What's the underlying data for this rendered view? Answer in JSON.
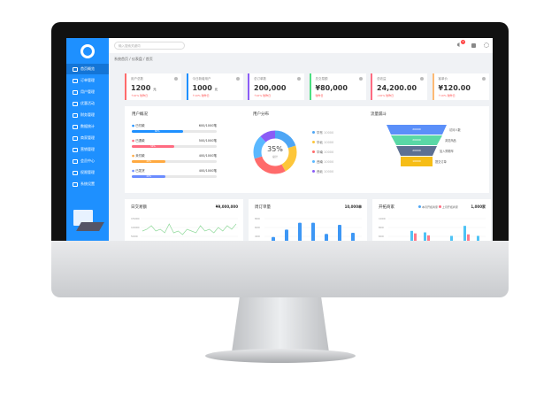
{
  "header": {
    "search_placeholder": "输入搜索关键词",
    "notif_count": "3"
  },
  "breadcrumb": "系统首页 / 仪表盘 / 首页",
  "sidebar": {
    "items": [
      {
        "label": "首页概览",
        "active": true
      },
      {
        "label": "订单管理"
      },
      {
        "label": "用户管理"
      },
      {
        "label": "优惠活动"
      },
      {
        "label": "财务管理"
      },
      {
        "label": "数据统计"
      },
      {
        "label": "商家管理"
      },
      {
        "label": "营销管理"
      },
      {
        "label": "会员中心"
      },
      {
        "label": "权限管理"
      },
      {
        "label": "系统设置"
      }
    ]
  },
  "cards": [
    {
      "label": "用户总数",
      "value": "1200",
      "unit": "元",
      "trend": "↑10% 较昨日",
      "color": "#ff6b6b"
    },
    {
      "label": "今日新增用户",
      "value": "1000",
      "unit": "元",
      "trend": "↑10% 较昨日",
      "color": "#1e90ff"
    },
    {
      "label": "总订单数",
      "value": "200,000",
      "unit": "",
      "trend": "↑10% 较昨日",
      "color": "#8b5cf6"
    },
    {
      "label": "总交易额",
      "value": "¥80,000",
      "unit": "",
      "trend": "较昨日",
      "color": "#4ade80"
    },
    {
      "label": "总收益",
      "value": "24,200.00",
      "unit": "",
      "trend": "↓20% 较昨日",
      "color": "#ff6b81"
    },
    {
      "label": "客单价",
      "value": "¥120.00",
      "unit": "",
      "trend": "↑10% 较昨日",
      "color": "#fdba74"
    }
  ],
  "progress": {
    "title": "用户概况",
    "items": [
      {
        "label": "已付款",
        "value": "600/1000笔",
        "pct": 60,
        "color": "#1e90ff"
      },
      {
        "label": "已退款",
        "value": "500/1000笔",
        "pct": 50,
        "color": "#ff6b81"
      },
      {
        "label": "未付款",
        "value": "400/1000笔",
        "pct": 40,
        "color": "#ffa940"
      },
      {
        "label": "已发货",
        "value": "400/1000笔",
        "pct": 40,
        "color": "#6b8cff"
      }
    ]
  },
  "donut": {
    "title": "用户分布",
    "center": "35%",
    "sub": "总计",
    "items": [
      {
        "label": "华东",
        "value": "10000",
        "color": "#4ea6f5"
      },
      {
        "label": "华北",
        "value": "10000",
        "color": "#fdc63a"
      },
      {
        "label": "华南",
        "value": "10000",
        "color": "#ff6b6b"
      },
      {
        "label": "西南",
        "value": "10000",
        "color": "#5ab8ff"
      },
      {
        "label": "西北",
        "value": "10000",
        "color": "#8b5cf6"
      }
    ]
  },
  "funnel": {
    "title": "流量漏斗",
    "items": [
      {
        "value": "20000",
        "label": "访问人数",
        "color": "#5b8ff9"
      },
      {
        "value": "20000",
        "label": "浏览商品",
        "color": "#5ad8a6"
      },
      {
        "value": "20000",
        "label": "加入购物车",
        "color": "#5d7092"
      },
      {
        "value": "10000",
        "label": "提交订单",
        "color": "#f6bd16"
      }
    ]
  },
  "daily": {
    "title": "日交易额",
    "total": "¥9,000,000",
    "ticks": [
      "15000",
      "10000",
      "5000"
    ],
    "values": [
      5,
      6,
      8,
      5,
      6,
      4,
      9,
      4,
      5,
      3,
      6,
      5,
      4,
      8,
      5,
      6,
      4,
      7,
      5,
      8,
      6,
      9
    ]
  },
  "weekly": {
    "title": "周订单量",
    "total": "10,000单",
    "ticks": [
      "800",
      "600",
      "400"
    ],
    "values": [
      420,
      560,
      690,
      690,
      480,
      650,
      500
    ]
  },
  "merchants": {
    "title": "开拓商家",
    "total": "1,000家",
    "legend": [
      "本月开拓商家",
      "上月开拓商家"
    ],
    "ticks": [
      "1000",
      "800",
      "600"
    ],
    "a": [
      0,
      650,
      620,
      0,
      550,
      750,
      550
    ],
    "b": [
      430,
      600,
      560,
      420,
      450,
      580,
      340
    ]
  }
}
